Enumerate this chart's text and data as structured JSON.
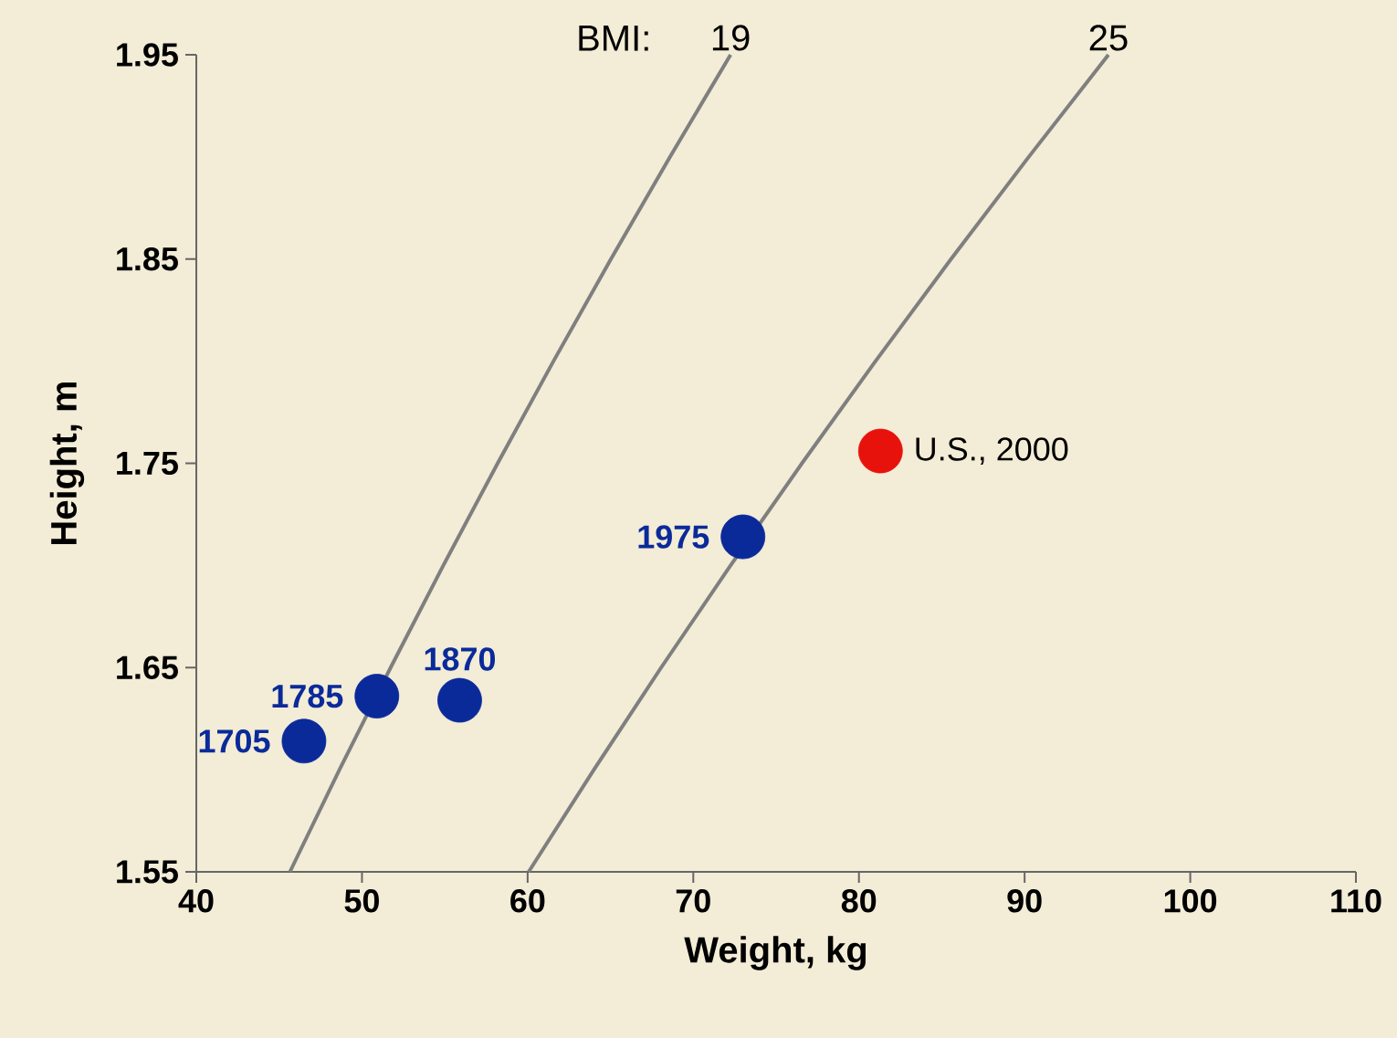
{
  "chart_data": {
    "type": "scatter",
    "xlabel": "Weight, kg",
    "ylabel": "Height, m",
    "xlim": [
      40,
      110
    ],
    "xticks": [
      40,
      50,
      60,
      70,
      80,
      90,
      100,
      110
    ],
    "ylim": [
      1.55,
      1.95
    ],
    "yticks": [
      1.55,
      1.65,
      1.75,
      1.85,
      1.95
    ],
    "grid": false,
    "legend": false,
    "series": [
      {
        "name": "19",
        "type": "line",
        "color": "#7f7f7f",
        "line_style": "solid",
        "marker": "none",
        "x": [
          45.65,
          48.64,
          51.73,
          54.91,
          58.19,
          61.56,
          65.03,
          68.59,
          72.25
        ],
        "values": [
          1.55,
          1.6,
          1.65,
          1.7,
          1.75,
          1.8,
          1.85,
          1.9,
          1.95
        ]
      },
      {
        "name": "25",
        "type": "line",
        "color": "#7f7f7f",
        "line_style": "solid",
        "marker": "none",
        "x": [
          60.06,
          64.0,
          68.06,
          72.25,
          76.56,
          81.0,
          85.56,
          90.25,
          95.06
        ],
        "values": [
          1.55,
          1.6,
          1.65,
          1.7,
          1.75,
          1.8,
          1.85,
          1.9,
          1.95
        ]
      },
      {
        "color": "#0a2a9a",
        "marker": "circle",
        "x": [
          46.5,
          50.9,
          55.9,
          73.0
        ],
        "values": [
          1.614,
          1.636,
          1.634,
          1.714
        ]
      },
      {
        "color": "#e8120c",
        "marker": "circle",
        "x": [
          81.3
        ],
        "values": [
          1.756
        ]
      }
    ],
    "annotations": [
      "BMI:",
      {
        "text": "1705",
        "x": 46.5,
        "y": 1.614
      },
      {
        "text": "1785",
        "x": 50.9,
        "y": 1.636
      },
      {
        "text": "1870",
        "x": 55.9,
        "y": 1.634
      },
      {
        "text": "1975",
        "x": 73.0,
        "y": 1.714
      },
      {
        "text": "U.S., 2000",
        "x": 81.3,
        "y": 1.756
      }
    ]
  }
}
